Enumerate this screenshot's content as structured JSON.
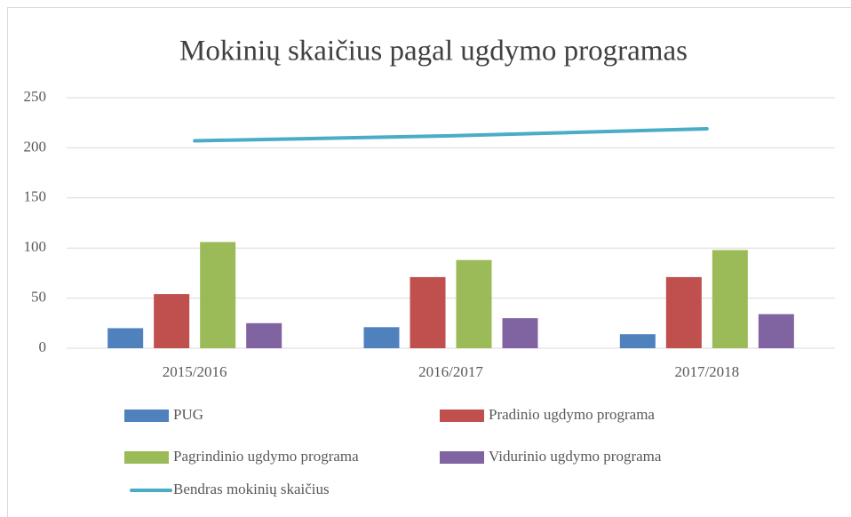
{
  "chart_data": {
    "type": "bar",
    "title": "Mokinių  skaičius pagal ugdymo programas",
    "categories": [
      "2015/2016",
      "2016/2017",
      "2017/2018"
    ],
    "series": [
      {
        "name": "PUG",
        "color": "#4f81bd",
        "values": [
          20,
          21,
          14
        ]
      },
      {
        "name": "Pradinio ugdymo programa",
        "color": "#c0504d",
        "values": [
          54,
          71,
          71
        ]
      },
      {
        "name": "Pagrindinio ugdymo programa",
        "color": "#9bbb59",
        "values": [
          106,
          88,
          98
        ]
      },
      {
        "name": "Vidurinio ugdymo programa",
        "color": "#8064a2",
        "values": [
          25,
          30,
          34
        ]
      },
      {
        "name": "Bendras mokinių skaičius",
        "color": "#4bacc6",
        "type": "line",
        "values": [
          207,
          212,
          219
        ]
      }
    ],
    "ylim": [
      0,
      250
    ],
    "yticks": [
      0,
      50,
      100,
      150,
      200,
      250
    ],
    "grid": true
  }
}
